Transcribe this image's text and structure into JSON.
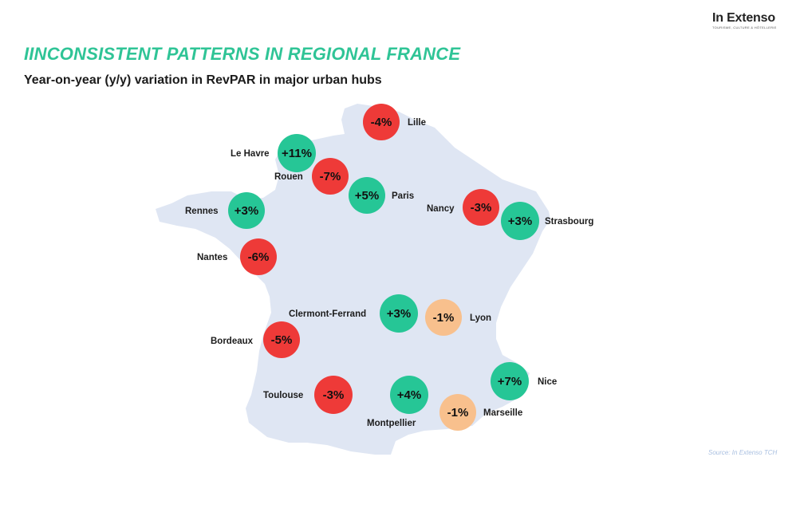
{
  "logo": {
    "name": "In Extenso",
    "tagline": "TOURISME, CULTURE & HÔTELLERIE"
  },
  "title": "IINCONSISTENT PATTERNS IN REGIONAL FRANCE",
  "subtitle": "Year-on-year (y/y) variation in RevPAR in major urban hubs",
  "colors": {
    "positive": "#26c696",
    "negative": "#ee3a38",
    "neutral": "#f8c08d",
    "map_fill": "#dfe6f3",
    "title": "#2fc496"
  },
  "cities": [
    {
      "name": "Lille",
      "value": "-4%",
      "status": "negative"
    },
    {
      "name": "Le Havre",
      "value": "+11%",
      "status": "positive"
    },
    {
      "name": "Rouen",
      "value": "-7%",
      "status": "negative"
    },
    {
      "name": "Paris",
      "value": "+5%",
      "status": "positive"
    },
    {
      "name": "Nancy",
      "value": "-3%",
      "status": "negative"
    },
    {
      "name": "Strasbourg",
      "value": "+3%",
      "status": "positive"
    },
    {
      "name": "Rennes",
      "value": "+3%",
      "status": "positive"
    },
    {
      "name": "Nantes",
      "value": "-6%",
      "status": "negative"
    },
    {
      "name": "Clermont-Ferrand",
      "value": "+3%",
      "status": "positive"
    },
    {
      "name": "Lyon",
      "value": "-1%",
      "status": "neutral"
    },
    {
      "name": "Bordeaux",
      "value": "-5%",
      "status": "negative"
    },
    {
      "name": "Toulouse",
      "value": "-3%",
      "status": "negative"
    },
    {
      "name": "Montpellier",
      "value": "+4%",
      "status": "positive"
    },
    {
      "name": "Marseille",
      "value": "-1%",
      "status": "neutral"
    },
    {
      "name": "Nice",
      "value": "+7%",
      "status": "positive"
    }
  ],
  "source": "Source: In Extenso TCH"
}
